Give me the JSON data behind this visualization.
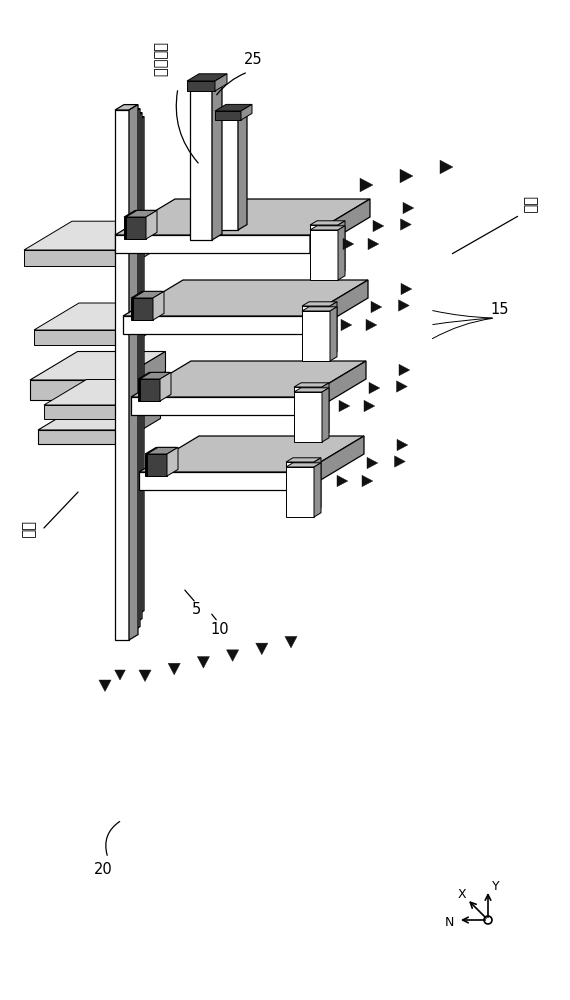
{
  "bg": "#ffffff",
  "white": "#ffffff",
  "light_gray": "#c0c0c0",
  "mid_gray": "#909090",
  "dark_gray": "#404040",
  "very_light_gray": "#e0e0e0",
  "black": "#111111",
  "label_memory_cell": "存储单元",
  "label_word_line": "字线",
  "label_bit_line": "位线",
  "num_25": "25",
  "num_15": "15",
  "num_20": "20",
  "num_5": "5",
  "num_10": "10",
  "figw": 5.7,
  "figh": 10.0,
  "dpi": 100
}
